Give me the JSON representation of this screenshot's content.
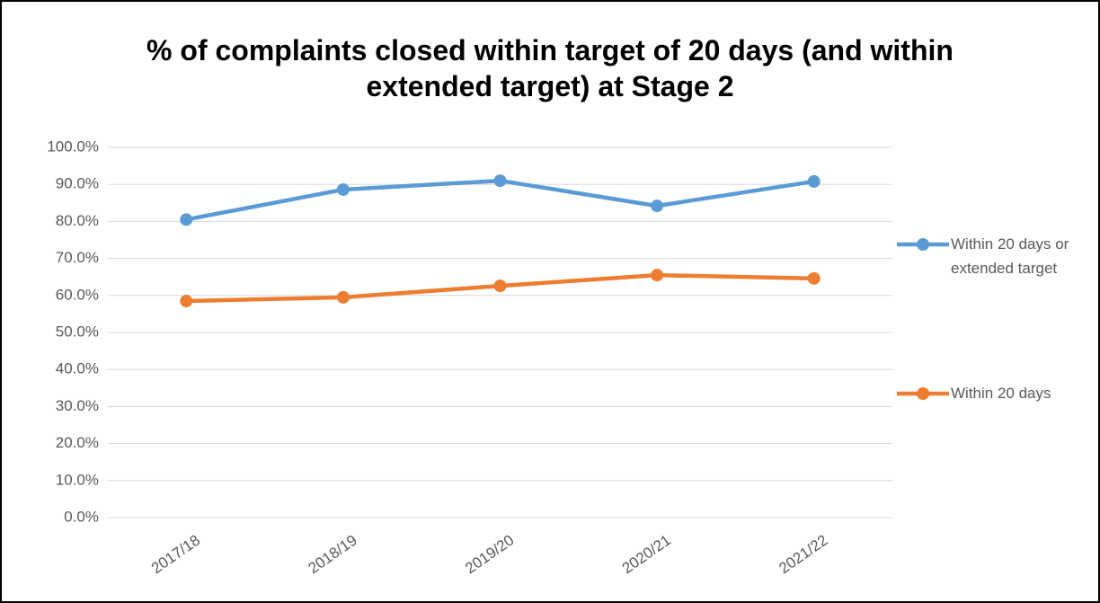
{
  "chart_data": {
    "type": "line",
    "title": "% of complaints closed within target of 20 days (and within extended target) at Stage 2",
    "categories": [
      "2017/18",
      "2018/19",
      "2019/20",
      "2020/21",
      "2021/22"
    ],
    "series": [
      {
        "name": "Within 20 days or extended target",
        "color": "#5b9bd5",
        "values": [
          80.5,
          88.6,
          91.0,
          84.2,
          90.8
        ]
      },
      {
        "name": "Within 20 days",
        "color": "#ed7d31",
        "values": [
          58.5,
          59.5,
          62.6,
          65.5,
          64.6
        ]
      }
    ],
    "ylim": [
      0,
      100
    ],
    "yticks": [
      {
        "value": 0,
        "label": "0.0%"
      },
      {
        "value": 10,
        "label": "10.0%"
      },
      {
        "value": 20,
        "label": "20.0%"
      },
      {
        "value": 30,
        "label": "30.0%"
      },
      {
        "value": 40,
        "label": "40.0%"
      },
      {
        "value": 50,
        "label": "50.0%"
      },
      {
        "value": 60,
        "label": "60.0%"
      },
      {
        "value": 70,
        "label": "70.0%"
      },
      {
        "value": 80,
        "label": "80.0%"
      },
      {
        "value": 90,
        "label": "90.0%"
      },
      {
        "value": 100,
        "label": "100.0%"
      }
    ],
    "grid": true,
    "legend": "right"
  }
}
